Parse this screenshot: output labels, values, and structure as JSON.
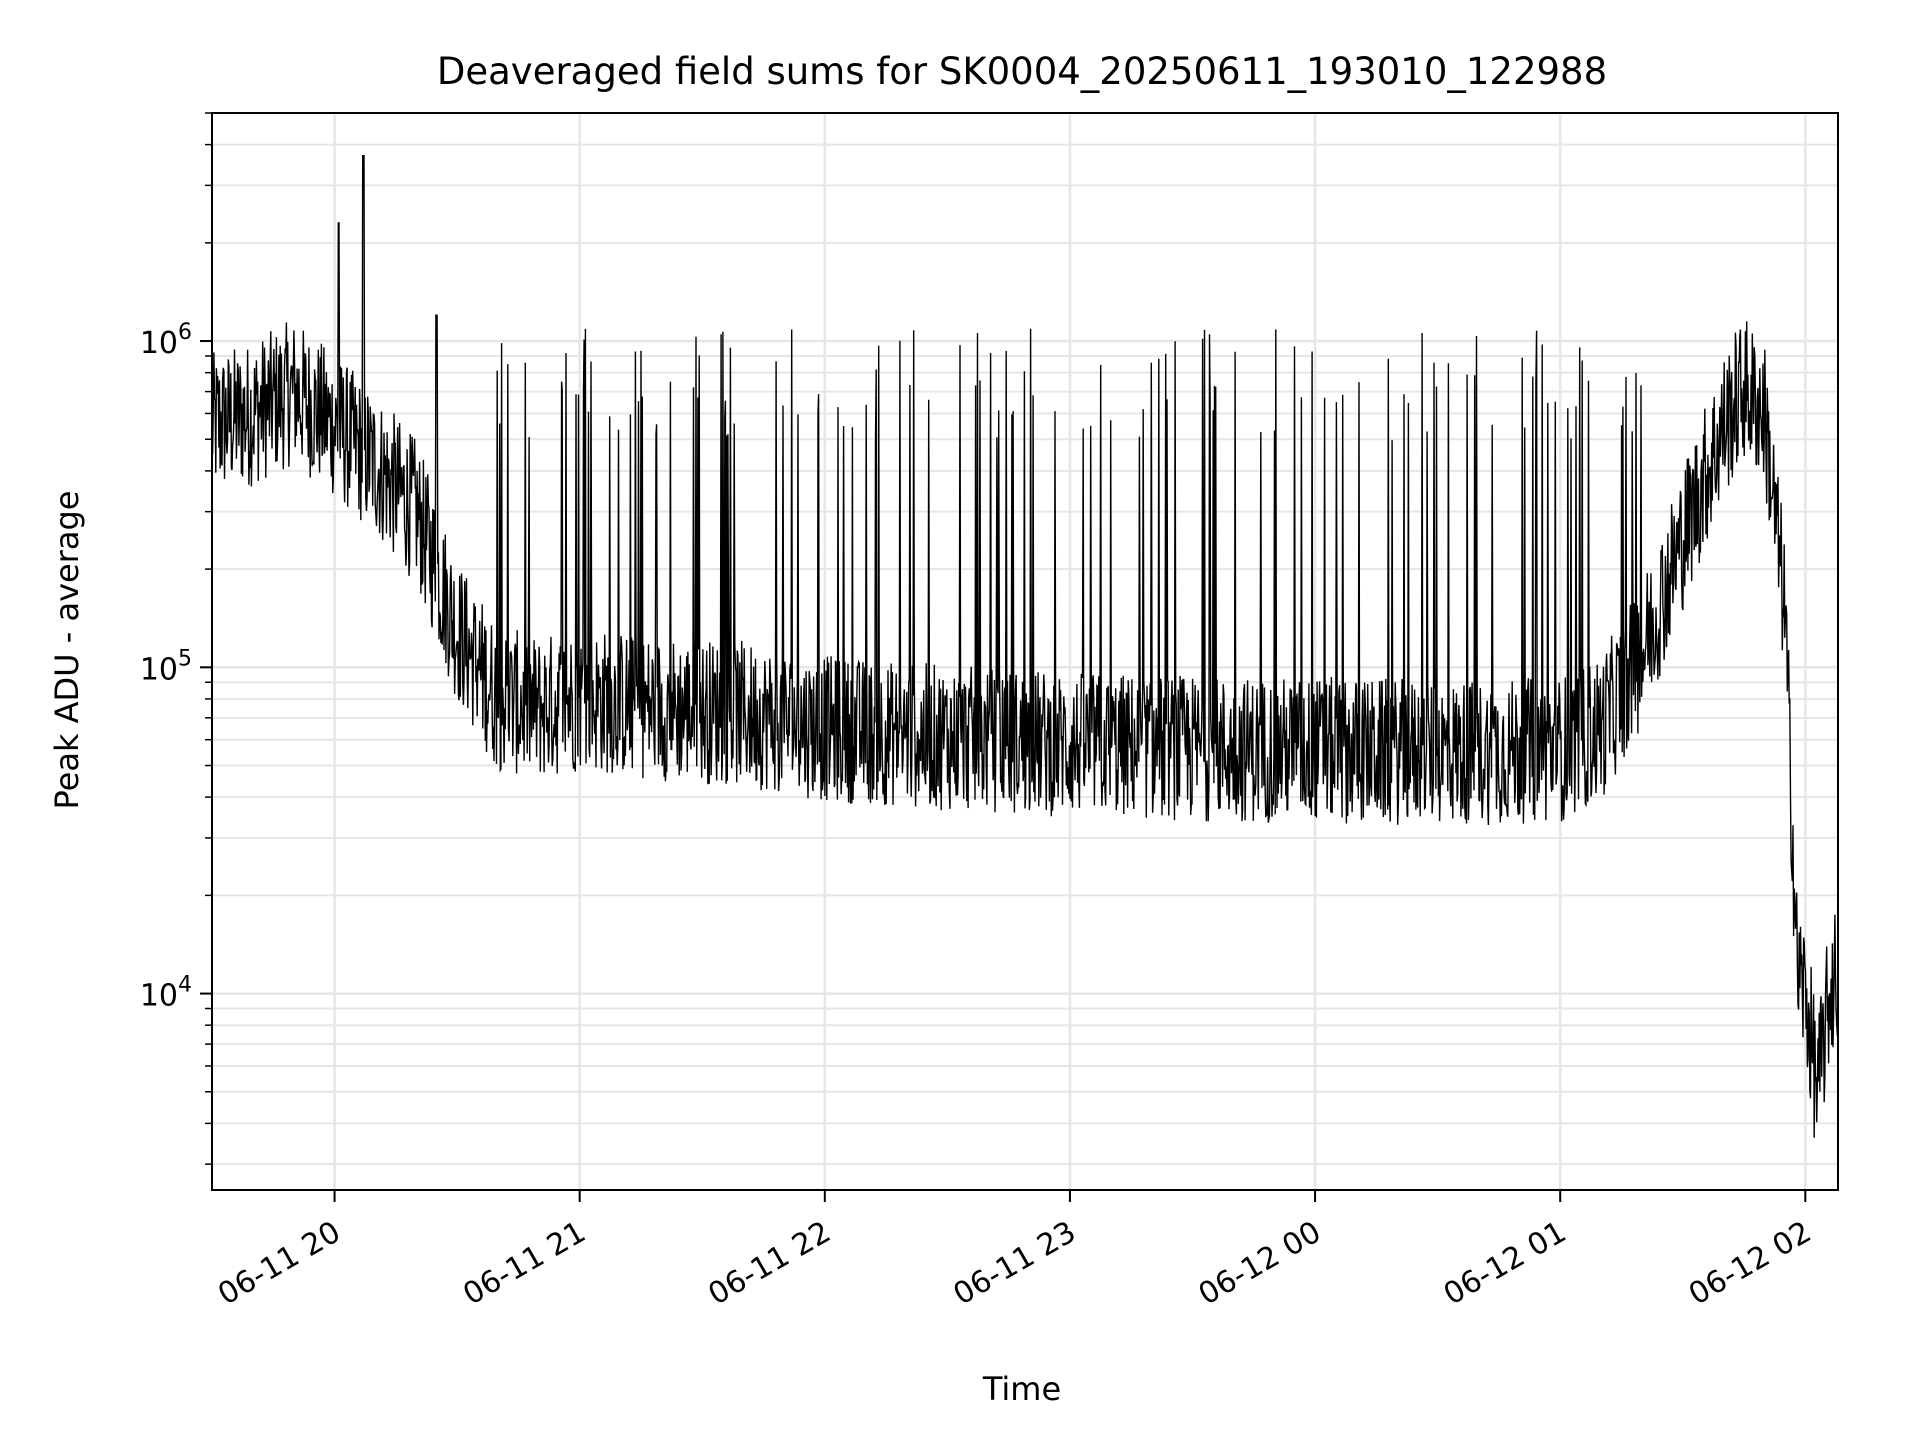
{
  "chart_data": {
    "type": "line",
    "title": "Deaveraged field sums for SK0004_20250611_193010_122988",
    "xlabel": "Time",
    "ylabel": "Peak ADU - average",
    "y_scale": "log",
    "xlim": [
      "2025-06-11 19:30",
      "2025-06-12 02:08"
    ],
    "ylim": [
      2500,
      5000000
    ],
    "x_ticks": [
      "06-11 20",
      "06-11 21",
      "06-11 22",
      "06-11 23",
      "06-12 00",
      "06-12 01",
      "06-12 02"
    ],
    "y_ticks": [
      {
        "base": "10",
        "exp": "4"
      },
      {
        "base": "10",
        "exp": "5"
      },
      {
        "base": "10",
        "exp": "6"
      }
    ],
    "grid": true,
    "line_color": "#000000",
    "series": [
      {
        "x": [
          "2025-06-11 19:30",
          "2025-06-11 19:40",
          "2025-06-11 19:50",
          "2025-06-11 20:00",
          "2025-06-11 20:10",
          "2025-06-11 20:20",
          "2025-06-11 20:30",
          "2025-06-11 20:40",
          "2025-06-11 20:50",
          "2025-06-11 21:00",
          "2025-06-11 21:20",
          "2025-06-11 21:40",
          "2025-06-11 22:00",
          "2025-06-11 22:20",
          "2025-06-11 22:40",
          "2025-06-11 23:00",
          "2025-06-11 23:20",
          "2025-06-11 23:40",
          "2025-06-12 00:00",
          "2025-06-12 00:20",
          "2025-06-12 00:40",
          "2025-06-12 01:00",
          "2025-06-12 01:10",
          "2025-06-12 01:20",
          "2025-06-12 01:30",
          "2025-06-12 01:40",
          "2025-06-12 01:45",
          "2025-06-12 01:50",
          "2025-06-12 01:55",
          "2025-06-12 01:58",
          "2025-06-12 02:00",
          "2025-06-12 02:03",
          "2025-06-12 02:06",
          "2025-06-12 02:08"
        ],
        "y": [
          550000,
          600000,
          700000,
          550000,
          420000,
          300000,
          130000,
          80000,
          75000,
          80000,
          75000,
          72000,
          65000,
          62000,
          60000,
          58000,
          57000,
          56000,
          56000,
          55000,
          55000,
          56000,
          65000,
          110000,
          250000,
          550000,
          720000,
          600000,
          150000,
          12000,
          10000,
          5000,
          10000,
          12000
        ],
        "spikes": [
          {
            "x": "2025-06-11 20:01",
            "y": 2300000
          },
          {
            "x": "2025-06-11 20:07",
            "y": 3700000
          },
          {
            "x": "2025-06-11 20:25",
            "y": 1200000
          }
        ],
        "repeated_spikes": {
          "from": "2025-06-11 20:35",
          "to": "2025-06-12 01:20",
          "peak": 1100000
        }
      }
    ]
  }
}
